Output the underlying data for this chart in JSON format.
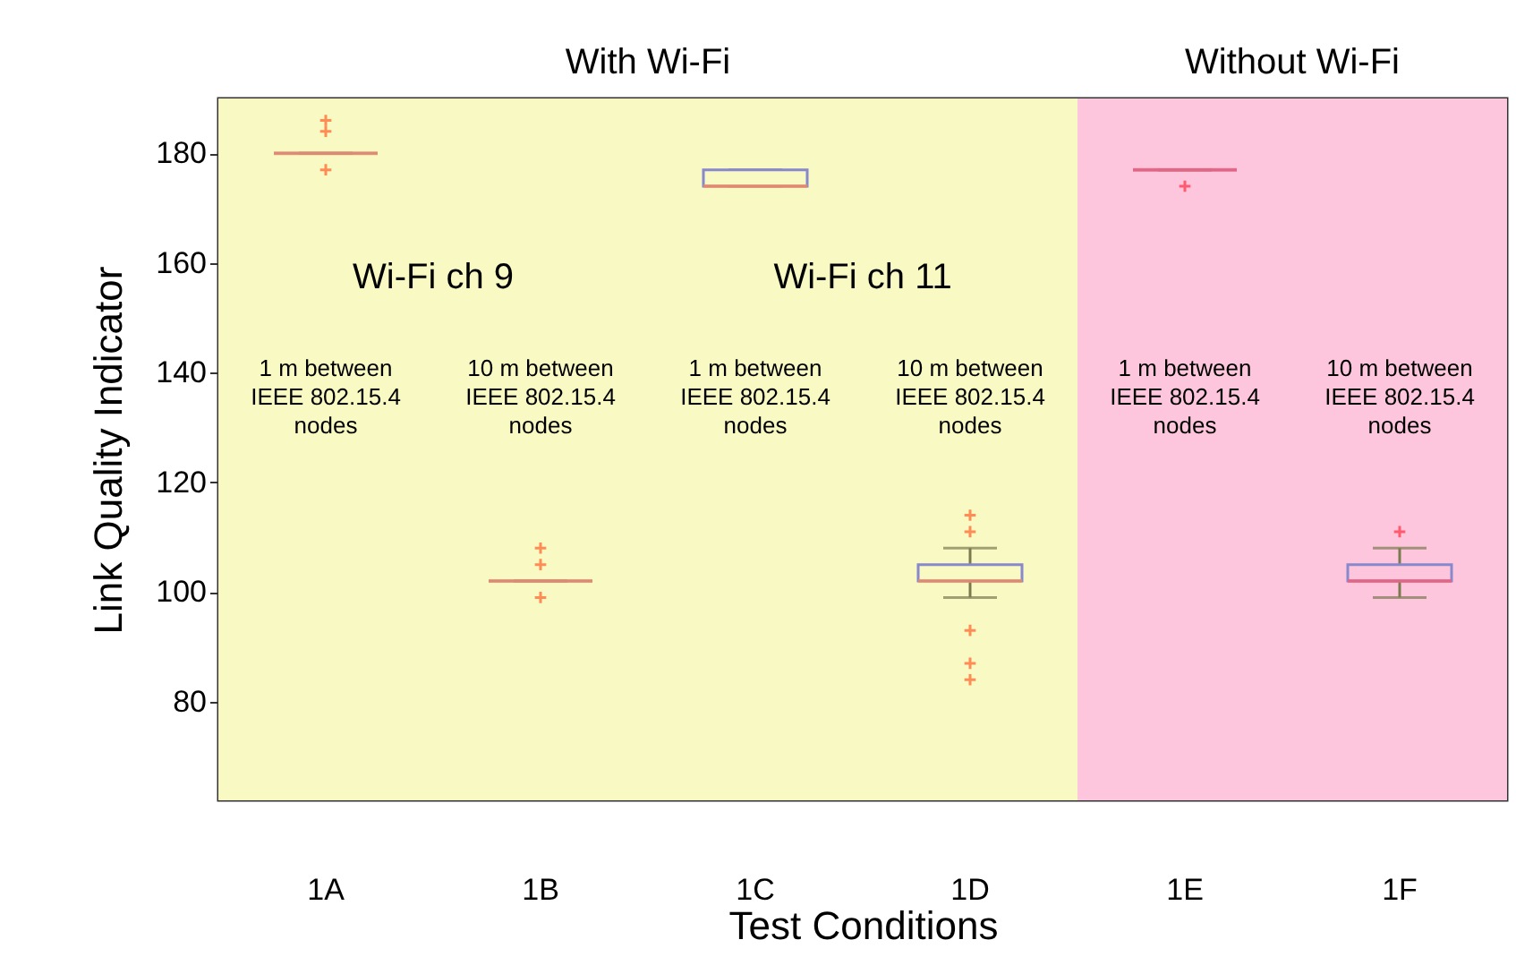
{
  "chart_data": {
    "type": "box",
    "xlabel": "Test Conditions",
    "ylabel": "Link Quality Indicator",
    "categories": [
      "1A",
      "1B",
      "1C",
      "1D",
      "1E",
      "1F"
    ],
    "boxes": [
      {
        "low": 180,
        "q1": 180,
        "median": 180,
        "q3": 180,
        "high": 180,
        "outliers": [
          186,
          184,
          177
        ]
      },
      {
        "low": 102,
        "q1": 102,
        "median": 102,
        "q3": 102,
        "high": 102,
        "outliers": [
          108,
          105,
          99
        ]
      },
      {
        "low": 174,
        "q1": 174,
        "median": 174,
        "q3": 177,
        "high": 177
      },
      {
        "low": 99,
        "q1": 102,
        "median": 102,
        "q3": 105,
        "high": 108,
        "outliers": [
          114,
          111,
          93,
          87,
          84
        ]
      },
      {
        "low": 177,
        "q1": 177,
        "median": 177,
        "q3": 177,
        "high": 177,
        "outliers": [
          174
        ]
      },
      {
        "low": 99,
        "q1": 102,
        "median": 102,
        "q3": 105,
        "high": 108,
        "outliers": [
          111
        ]
      }
    ],
    "colors": [
      "#ff8c55",
      "#ff8c55",
      "#ff8c55",
      "#ff8c55",
      "#ff5a6e",
      "#ff5a6e"
    ],
    "ylim": [
      62,
      190
    ],
    "yticks": [
      80,
      100,
      120,
      140,
      160,
      180
    ],
    "bands": [
      {
        "axis": "x",
        "from": "1A",
        "to": "1D",
        "label": "With Wi-Fi",
        "color": "#f9f9c4"
      },
      {
        "axis": "x",
        "from": "1E",
        "to": "1F",
        "label": "Without Wi-Fi",
        "color": "#fec6dc"
      }
    ],
    "annotations": [
      "Wi-Fi ch 9",
      "Wi-Fi ch 11",
      "1 m between\nIEEE 802.15.4\nnodes",
      "10 m between\nIEEE 802.15.4\nnodes",
      "1 m between\nIEEE 802.15.4\nnodes",
      "10 m between\nIEEE 802.15.4\nnodes",
      "1 m between\nIEEE 802.15.4\nnodes",
      "10 m between\nIEEE 802.15.4\nnodes"
    ]
  }
}
